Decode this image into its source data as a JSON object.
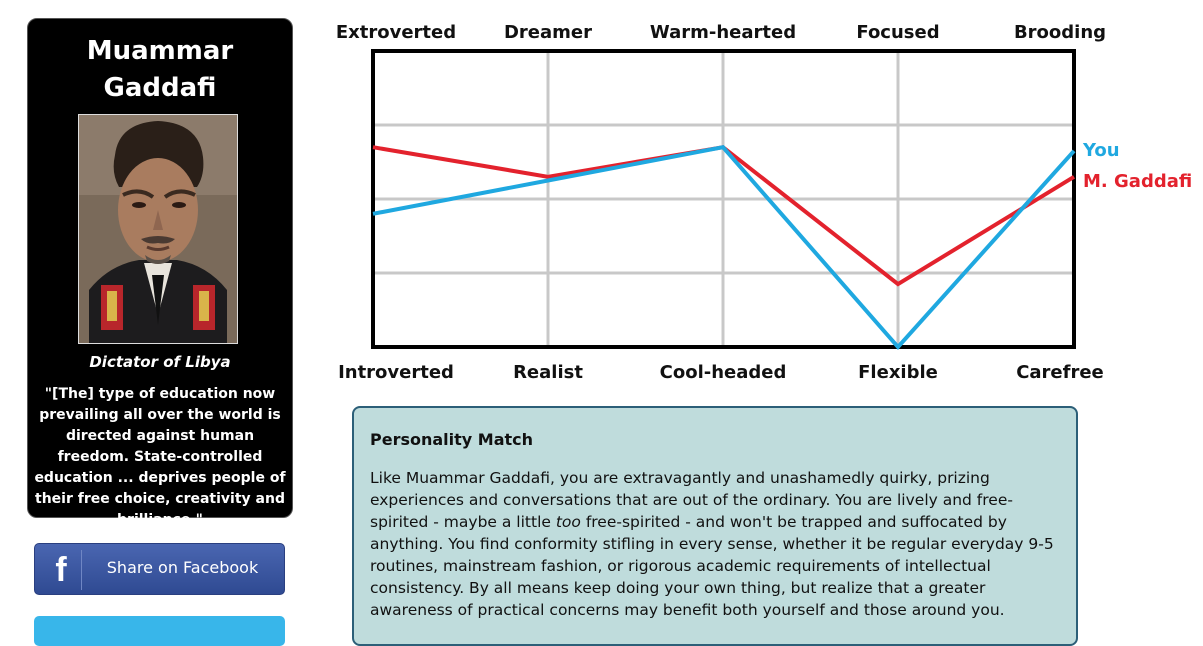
{
  "profile": {
    "name_line1": "Muammar",
    "name_line2": "Gaddafi",
    "role": "Dictator of Libya",
    "quote": "\"[The] type of education now prevailing all over the world is directed against human freedom. State-controlled education ... deprives people of their free choice, creativity and brilliance.\""
  },
  "share": {
    "facebook_icon": "f",
    "facebook_label": "Share on Facebook"
  },
  "chart_data": {
    "type": "line",
    "categories_top": [
      "Extroverted",
      "Dreamer",
      "Warm-hearted",
      "Focused",
      "Brooding"
    ],
    "categories_bottom": [
      "Introverted",
      "Realist",
      "Cool-headed",
      "Flexible",
      "Carefree"
    ],
    "ylim": [
      0,
      4
    ],
    "grid": true,
    "series": [
      {
        "name": "You",
        "color": "#1fa8e0",
        "values": [
          1.8,
          2.25,
          2.7,
          0,
          2.65
        ]
      },
      {
        "name": "M. Gaddafi",
        "color": "#e3222d",
        "values": [
          2.7,
          2.3,
          2.7,
          0.85,
          2.3
        ]
      }
    ]
  },
  "match": {
    "title": "Personality Match",
    "para_before_italic": "Like Muammar Gaddafi, you are extravagantly and unashamedly quirky, prizing experiences and conversations that are out of the ordinary. You are lively and free-spirited - maybe a little ",
    "italic_word": "too",
    "para_after_italic": " free-spirited - and won't be trapped and suffocated by anything. You find conformity stifling in every sense, whether it be regular everyday 9-5 routines, mainstream fashion, or rigorous academic requirements of intellectual consistency. By all means keep doing your own thing, but realize that a greater awareness of practical concerns may benefit both yourself and those around you."
  }
}
